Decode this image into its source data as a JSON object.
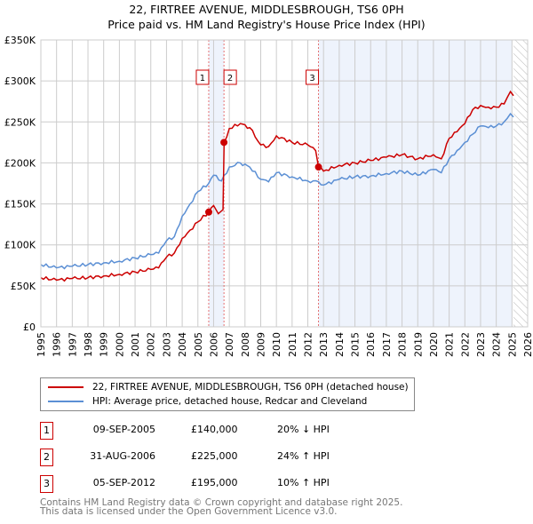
{
  "chart_data": {
    "type": "line",
    "title": "22, FIRTREE AVENUE, MIDDLESBROUGH, TS6 0PH",
    "subtitle": "Price paid vs. HM Land Registry's House Price Index (HPI)",
    "xlim": [
      1995,
      2026
    ],
    "ylim": [
      0,
      350000
    ],
    "yticks": [
      0,
      50000,
      100000,
      150000,
      200000,
      250000,
      300000,
      350000
    ],
    "ytick_labels": [
      "£0",
      "£50K",
      "£100K",
      "£150K",
      "£200K",
      "£250K",
      "£300K",
      "£350K"
    ],
    "xtick_labels": [
      "1995",
      "1996",
      "1997",
      "1998",
      "1999",
      "2000",
      "2001",
      "2002",
      "2003",
      "2004",
      "2005",
      "2006",
      "2007",
      "2008",
      "2009",
      "2010",
      "2011",
      "2012",
      "2013",
      "2014",
      "2015",
      "2016",
      "2017",
      "2018",
      "2019",
      "2020",
      "2021",
      "2022",
      "2023",
      "2024",
      "2025",
      "2026"
    ],
    "grid": true,
    "series": [
      {
        "name": "22, FIRTREE AVENUE, MIDDLESBROUGH, TS6 0PH (detached house)",
        "color": "#cc0000",
        "x": [
          1995,
          1996,
          1997,
          1998,
          1999,
          2000,
          2001,
          2002,
          2002.5,
          2003,
          2003.5,
          2004,
          2004.5,
          2005,
          2005.69,
          2006,
          2006.3,
          2006.6,
          2006.67,
          2007,
          2007.7,
          2008.3,
          2009,
          2009.5,
          2010,
          2011,
          2012,
          2012.5,
          2012.68,
          2013,
          2014,
          2015,
          2016,
          2017,
          2018,
          2019,
          2020,
          2020.5,
          2021,
          2021.5,
          2022,
          2022.5,
          2023,
          2023.5,
          2024,
          2024.5,
          2024.9,
          2025.1
        ],
        "y": [
          60000,
          57000,
          59000,
          60000,
          62000,
          64000,
          67000,
          70000,
          72000,
          85000,
          90000,
          108000,
          118000,
          128000,
          140000,
          148000,
          138000,
          143000,
          225000,
          242000,
          248000,
          243000,
          222000,
          220000,
          233000,
          225000,
          222000,
          215000,
          195000,
          190000,
          197000,
          200000,
          203000,
          207000,
          210000,
          205000,
          210000,
          205000,
          230000,
          238000,
          248000,
          265000,
          270000,
          268000,
          268000,
          272000,
          287000,
          282000
        ]
      },
      {
        "name": "HPI: Average price, detached house, Redcar and Cleveland",
        "color": "#5b8fd4",
        "x": [
          1995,
          1996,
          1997,
          1998,
          1999,
          2000,
          2001,
          2002,
          2002.5,
          2003,
          2003.5,
          2004,
          2004.5,
          2005,
          2005.69,
          2006,
          2006.5,
          2007,
          2007.7,
          2008.3,
          2009,
          2009.5,
          2010,
          2011,
          2012,
          2012.68,
          2013,
          2014,
          2015,
          2016,
          2017,
          2018,
          2019,
          2020,
          2020.5,
          2021,
          2021.5,
          2022,
          2022.5,
          2023,
          2023.5,
          2024,
          2024.5,
          2024.9,
          2025.1
        ],
        "y": [
          76000,
          72000,
          74000,
          76000,
          78000,
          80000,
          84000,
          88000,
          90000,
          105000,
          110000,
          135000,
          150000,
          165000,
          175000,
          185000,
          178000,
          195000,
          200000,
          195000,
          180000,
          177000,
          188000,
          183000,
          178000,
          177000,
          173000,
          180000,
          183000,
          184000,
          187000,
          190000,
          185000,
          192000,
          188000,
          205000,
          215000,
          225000,
          235000,
          245000,
          243000,
          245000,
          250000,
          260000,
          256000
        ]
      }
    ],
    "transactions": [
      {
        "label": "1",
        "x": 2005.69,
        "price": 140000,
        "date": "09-SEP-2005",
        "price_text": "£140,000",
        "hpi_text": "20% ↓ HPI"
      },
      {
        "label": "2",
        "x": 2006.66,
        "price": 225000,
        "date": "31-AUG-2006",
        "price_text": "£225,000",
        "hpi_text": "24% ↑ HPI"
      },
      {
        "label": "3",
        "x": 2012.68,
        "price": 195000,
        "date": "05-SEP-2012",
        "price_text": "£195,000",
        "hpi_text": "10% ↑ HPI"
      }
    ],
    "shaded_ranges": [
      [
        2005.69,
        2006.66
      ],
      [
        2012.68,
        2025.0
      ]
    ],
    "hatched_from": 2025.1,
    "legend_position": "below"
  },
  "footer": {
    "line1": "Contains HM Land Registry data © Crown copyright and database right 2025.",
    "line2": "This data is licensed under the Open Government Licence v3.0."
  }
}
